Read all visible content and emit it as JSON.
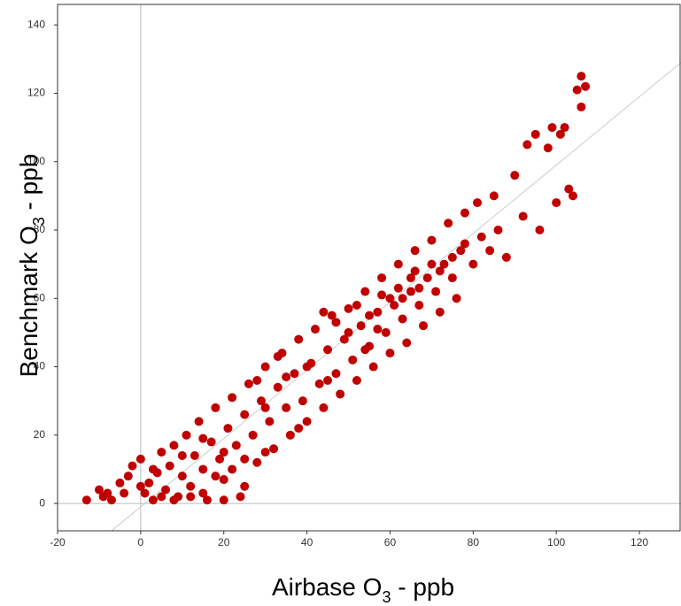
{
  "chart_data": {
    "type": "scatter",
    "xlabel": {
      "main": "Airbase O",
      "sub": "3",
      "rest": " - ppb"
    },
    "ylabel": {
      "main": "Benchmark O",
      "sub": "3",
      "rest": " - ppb"
    },
    "color": "#c00000",
    "xlim": [
      -20,
      130
    ],
    "ylim": [
      -8,
      146
    ],
    "xticks": [
      -20,
      0,
      20,
      40,
      60,
      80,
      100,
      120
    ],
    "yticks": [
      0,
      20,
      40,
      60,
      80,
      100,
      120,
      140
    ],
    "zero_lines": true,
    "diagonal": {
      "x": [
        -7,
        130
      ],
      "y": [
        -8,
        129
      ]
    },
    "x": [
      -13,
      -10,
      -9,
      -8,
      -7,
      -5,
      -3,
      -2,
      0,
      1,
      2,
      3,
      4,
      5,
      6,
      7,
      8,
      9,
      10,
      11,
      12,
      13,
      14,
      15,
      16,
      17,
      18,
      19,
      20,
      21,
      22,
      23,
      24,
      25,
      26,
      27,
      28,
      29,
      30,
      31,
      32,
      33,
      34,
      35,
      36,
      37,
      38,
      39,
      40,
      41,
      42,
      43,
      44,
      45,
      46,
      47,
      48,
      49,
      50,
      51,
      52,
      53,
      54,
      55,
      56,
      57,
      58,
      59,
      60,
      61,
      62,
      63,
      64,
      65,
      66,
      67,
      68,
      69,
      70,
      71,
      72,
      73,
      74,
      75,
      76,
      77,
      78,
      80,
      81,
      82,
      84,
      85,
      86,
      88,
      90,
      92,
      93,
      95,
      96,
      98,
      100,
      102,
      103,
      104,
      106,
      107,
      106,
      105,
      101,
      99,
      15,
      18,
      20,
      25,
      30,
      35,
      40,
      45,
      50,
      55,
      60,
      65,
      70,
      44,
      47,
      52,
      58,
      62,
      66,
      12,
      8,
      5,
      25,
      20,
      22,
      30,
      15,
      10,
      38,
      28,
      33,
      54,
      57,
      63,
      67,
      72,
      75,
      78,
      3,
      -4,
      0
    ],
    "y": [
      1,
      4,
      2,
      3,
      1,
      6,
      8,
      11,
      13,
      3,
      6,
      1,
      9,
      15,
      4,
      11,
      17,
      2,
      8,
      20,
      5,
      14,
      24,
      10,
      1,
      18,
      28,
      13,
      7,
      22,
      31,
      17,
      2,
      26,
      35,
      20,
      12,
      30,
      40,
      24,
      16,
      34,
      44,
      28,
      20,
      38,
      48,
      30,
      24,
      41,
      51,
      35,
      28,
      45,
      55,
      38,
      32,
      48,
      57,
      42,
      36,
      52,
      62,
      46,
      40,
      56,
      66,
      50,
      44,
      58,
      70,
      54,
      47,
      62,
      74,
      58,
      52,
      66,
      77,
      62,
      56,
      70,
      82,
      66,
      60,
      74,
      85,
      70,
      88,
      78,
      74,
      90,
      80,
      72,
      96,
      84,
      105,
      108,
      80,
      104,
      88,
      110,
      92,
      90,
      125,
      122,
      116,
      121,
      108,
      110,
      3,
      8,
      15,
      13,
      28,
      37,
      40,
      36,
      50,
      55,
      60,
      66,
      70,
      56,
      53,
      58,
      61,
      63,
      68,
      2,
      1,
      2,
      5,
      1,
      10,
      15,
      19,
      14,
      22,
      36,
      43,
      45,
      51,
      60,
      63,
      68,
      72,
      76,
      10,
      3,
      5
    ]
  }
}
